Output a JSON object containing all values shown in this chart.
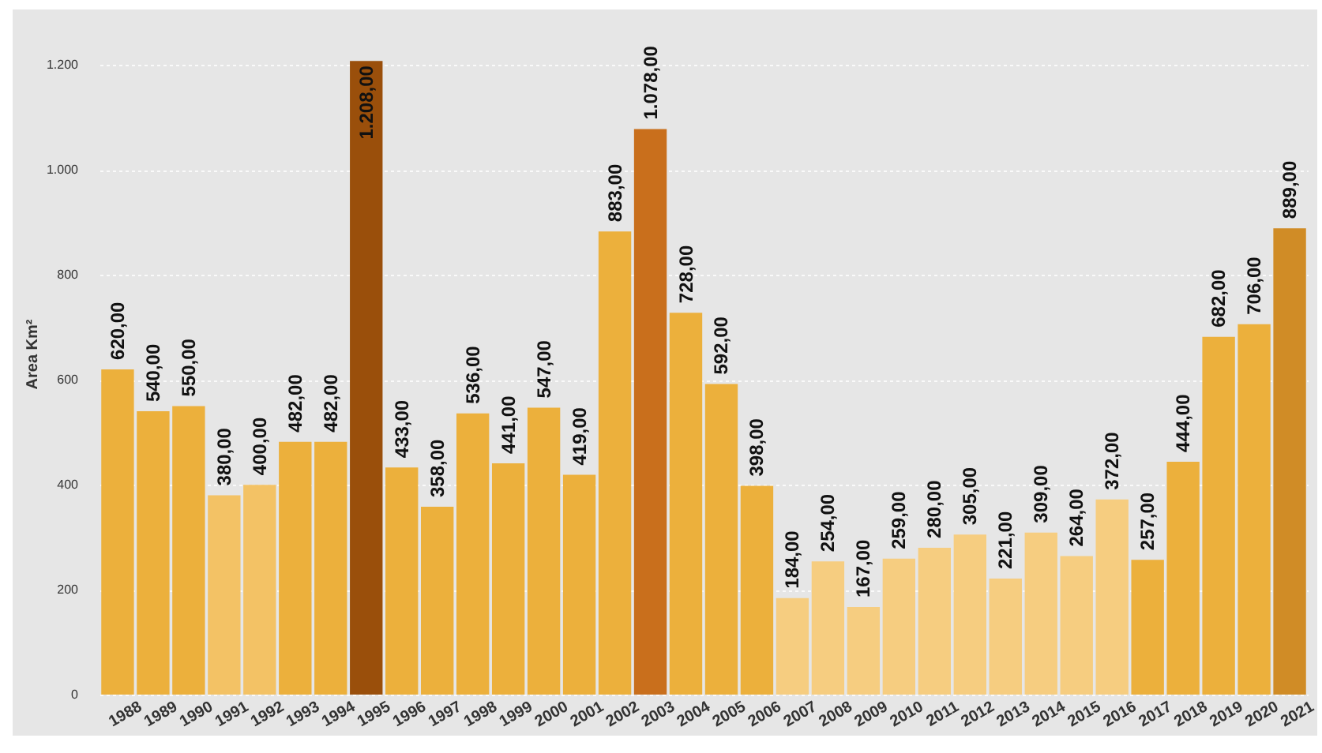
{
  "chart_data": {
    "type": "bar",
    "ylabel": "Area Km²",
    "categories": [
      "1988",
      "1989",
      "1990",
      "1991",
      "1992",
      "1993",
      "1994",
      "1995",
      "1996",
      "1997",
      "1998",
      "1999",
      "2000",
      "2001",
      "2002",
      "2003",
      "2004",
      "2005",
      "2006",
      "2007",
      "2008",
      "2009",
      "2010",
      "2011",
      "2012",
      "2013",
      "2014",
      "2015",
      "2016",
      "2017",
      "2018",
      "2019",
      "2020",
      "2021"
    ],
    "values": [
      620,
      540,
      550,
      380,
      400,
      482,
      482,
      1208,
      433,
      358,
      536,
      441,
      547,
      419,
      883,
      1078,
      728,
      592,
      398,
      184,
      254,
      167,
      259,
      280,
      305,
      221,
      309,
      264,
      372,
      257,
      444,
      682,
      706,
      889
    ],
    "value_labels": [
      "620,00",
      "540,00",
      "550,00",
      "380,00",
      "400,00",
      "482,00",
      "482,00",
      "1.208,00",
      "433,00",
      "358,00",
      "536,00",
      "441,00",
      "547,00",
      "419,00",
      "883,00",
      "1.078,00",
      "728,00",
      "592,00",
      "398,00",
      "184,00",
      "254,00",
      "167,00",
      "259,00",
      "280,00",
      "305,00",
      "221,00",
      "309,00",
      "264,00",
      "372,00",
      "257,00",
      "444,00",
      "682,00",
      "706,00",
      "889,00"
    ],
    "colors": [
      "#ecb03c",
      "#ecb03c",
      "#ecb03c",
      "#f3c265",
      "#f3c265",
      "#ecb03c",
      "#ecb03c",
      "#9a4f0b",
      "#ecb03c",
      "#ecb03c",
      "#ecb03c",
      "#ecb03c",
      "#ecb03c",
      "#ecb03c",
      "#ecb03c",
      "#c96f1c",
      "#ecb03c",
      "#ecb03c",
      "#ecb03c",
      "#f6cd80",
      "#f6cd80",
      "#f6cd80",
      "#f6cd80",
      "#f6cd80",
      "#f6cd80",
      "#f6cd80",
      "#f6cd80",
      "#f6cd80",
      "#f6cd80",
      "#ecb03c",
      "#ecb03c",
      "#ecb03c",
      "#ecb03c",
      "#d08c26"
    ],
    "ylim": [
      0,
      1300
    ],
    "yticks": [
      0,
      200,
      400,
      600,
      800,
      {
        "value": 1000,
        "label": "1.000"
      },
      {
        "value": 1200,
        "label": "1.200"
      }
    ],
    "grid": "y"
  }
}
